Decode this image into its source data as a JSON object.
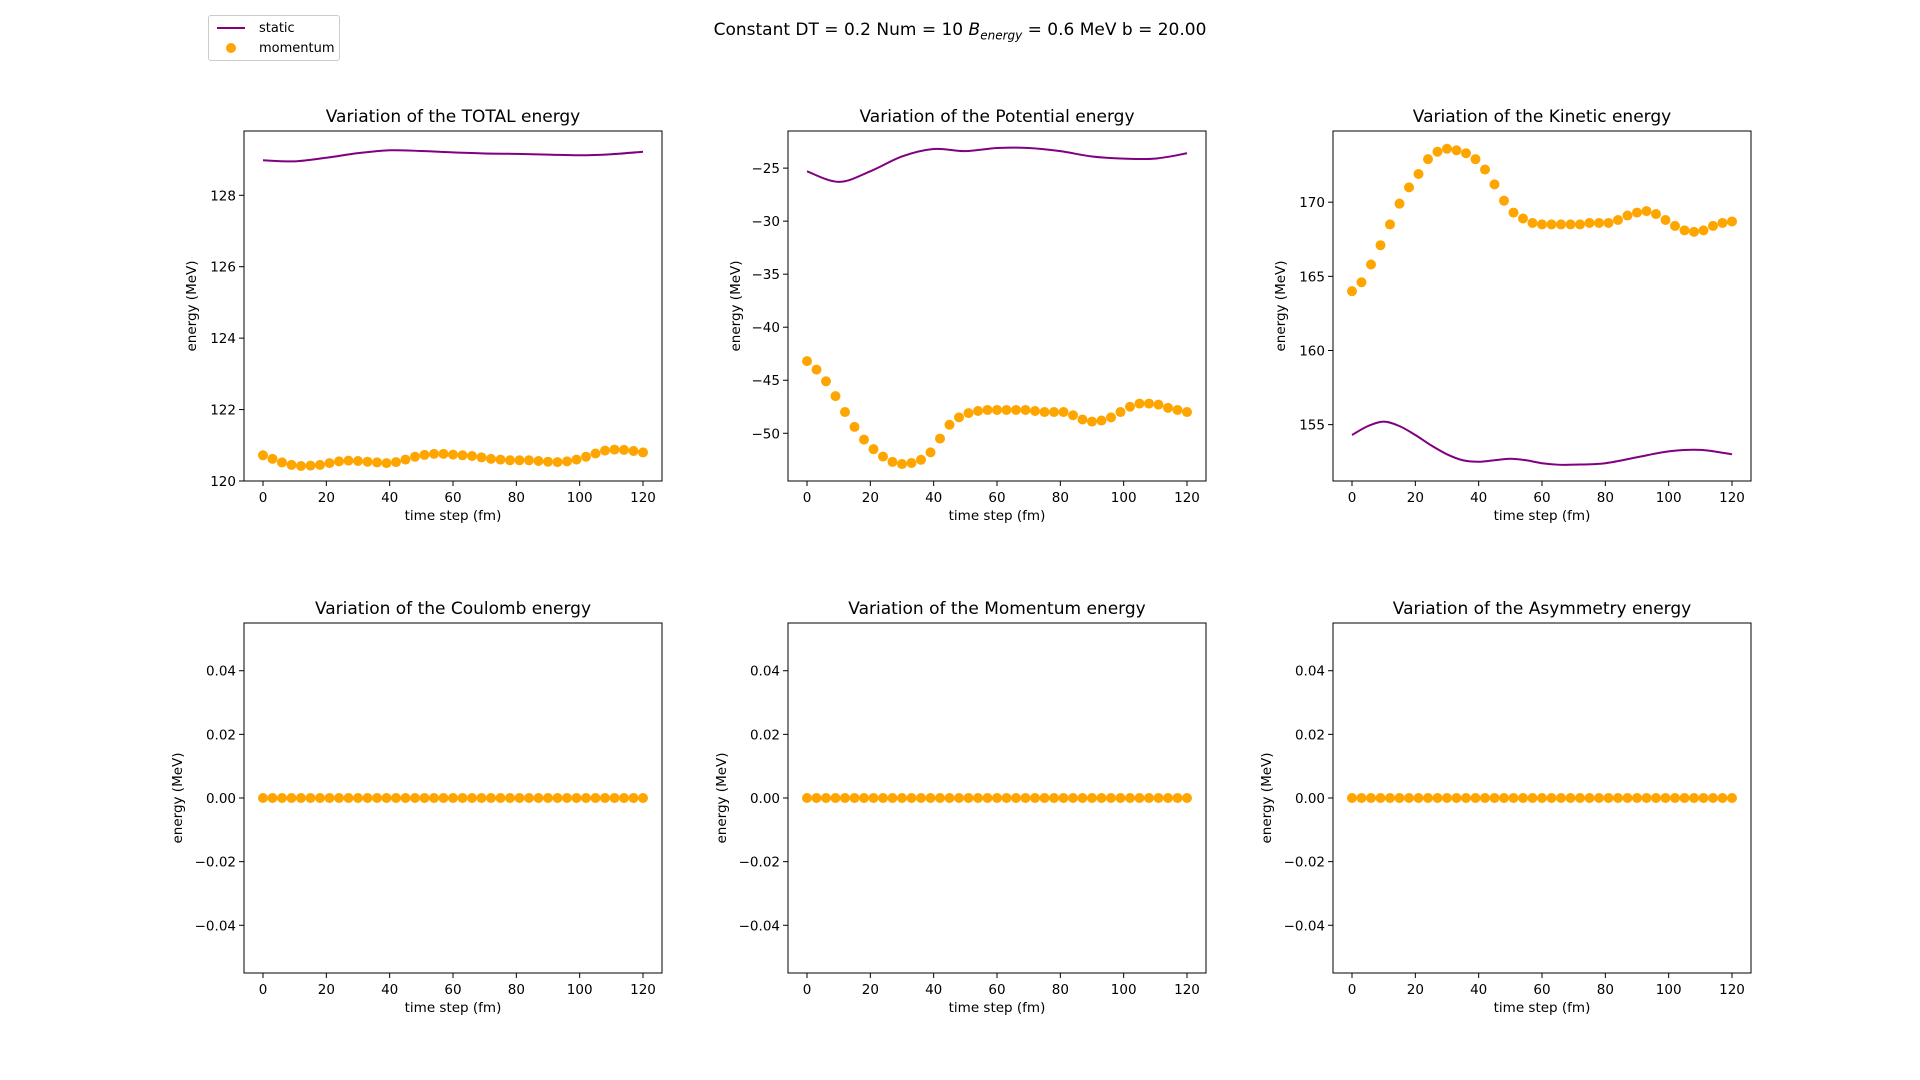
{
  "figure": {
    "suptitle_prefix": "Constant DT = 0.2 Num = 10 ",
    "suptitle_b": "B",
    "suptitle_sub": "energy",
    "suptitle_suffix": " =  0.6 MeV  b = 20.00",
    "colors": {
      "static": "#800080",
      "momentum": "#ffa500"
    }
  },
  "legend": {
    "static_label": "static",
    "momentum_label": "momentum"
  },
  "chart_data": [
    {
      "type": "line",
      "title": "Variation of the TOTAL energy",
      "xlabel": "time step (fm)",
      "ylabel": "energy (MeV)",
      "xlim": [
        -6,
        126
      ],
      "ylim": [
        120,
        129.8
      ],
      "xticks": [
        0,
        20,
        40,
        60,
        80,
        100,
        120
      ],
      "yticks": [
        120,
        122,
        124,
        126,
        128
      ],
      "ytick_labels": [
        "120",
        "122",
        "124",
        "126",
        "128"
      ],
      "series": [
        {
          "name": "static",
          "kind": "line",
          "x": [
            0,
            10,
            20,
            30,
            40,
            50,
            60,
            70,
            80,
            90,
            100,
            110,
            120
          ],
          "y": [
            128.98,
            128.95,
            129.05,
            129.18,
            129.26,
            129.24,
            129.2,
            129.17,
            129.16,
            129.14,
            129.12,
            129.15,
            129.22
          ]
        },
        {
          "name": "momentum",
          "kind": "scatter",
          "x": [
            0,
            3,
            6,
            9,
            12,
            15,
            18,
            21,
            24,
            27,
            30,
            33,
            36,
            39,
            42,
            45,
            48,
            51,
            54,
            57,
            60,
            63,
            66,
            69,
            72,
            75,
            78,
            81,
            84,
            87,
            90,
            93,
            96,
            99,
            102,
            105,
            108,
            111,
            114,
            117,
            120
          ],
          "y": [
            120.72,
            120.62,
            120.52,
            120.45,
            120.42,
            120.43,
            120.45,
            120.5,
            120.55,
            120.57,
            120.56,
            120.54,
            120.52,
            120.5,
            120.53,
            120.6,
            120.68,
            120.73,
            120.76,
            120.76,
            120.74,
            120.72,
            120.7,
            120.66,
            120.62,
            120.6,
            120.58,
            120.58,
            120.58,
            120.56,
            120.54,
            120.53,
            120.55,
            120.6,
            120.68,
            120.77,
            120.85,
            120.88,
            120.87,
            120.84,
            120.8
          ]
        }
      ]
    },
    {
      "type": "line",
      "title": "Variation of the Potential energy",
      "xlabel": "time step (fm)",
      "ylabel": "energy (MeV)",
      "xlim": [
        -6,
        126
      ],
      "ylim": [
        -54.5,
        -21.5
      ],
      "xticks": [
        0,
        20,
        40,
        60,
        80,
        100,
        120
      ],
      "yticks": [
        -50,
        -45,
        -40,
        -35,
        -30,
        -25
      ],
      "ytick_labels": [
        "−50",
        "−45",
        "−40",
        "−35",
        "−30",
        "−25"
      ],
      "series": [
        {
          "name": "static",
          "kind": "line",
          "x": [
            0,
            10,
            20,
            30,
            40,
            50,
            60,
            70,
            80,
            90,
            100,
            110,
            120
          ],
          "y": [
            -25.3,
            -26.3,
            -25.3,
            -23.9,
            -23.2,
            -23.4,
            -23.1,
            -23.1,
            -23.4,
            -23.9,
            -24.1,
            -24.1,
            -23.6
          ]
        },
        {
          "name": "momentum",
          "kind": "scatter",
          "x": [
            0,
            3,
            6,
            9,
            12,
            15,
            18,
            21,
            24,
            27,
            30,
            33,
            36,
            39,
            42,
            45,
            48,
            51,
            54,
            57,
            60,
            63,
            66,
            69,
            72,
            75,
            78,
            81,
            84,
            87,
            90,
            93,
            96,
            99,
            102,
            105,
            108,
            111,
            114,
            117,
            120
          ],
          "y": [
            -43.2,
            -44.0,
            -45.1,
            -46.5,
            -48.0,
            -49.4,
            -50.6,
            -51.5,
            -52.2,
            -52.7,
            -52.9,
            -52.8,
            -52.5,
            -51.8,
            -50.5,
            -49.2,
            -48.5,
            -48.1,
            -47.9,
            -47.8,
            -47.8,
            -47.8,
            -47.8,
            -47.8,
            -47.9,
            -48.0,
            -48.0,
            -48.0,
            -48.3,
            -48.7,
            -48.9,
            -48.8,
            -48.5,
            -48.0,
            -47.5,
            -47.2,
            -47.2,
            -47.3,
            -47.6,
            -47.8,
            -48.0
          ]
        }
      ]
    },
    {
      "type": "line",
      "title": "Variation of the Kinetic energy",
      "xlabel": "time step (fm)",
      "ylabel": "energy (MeV)",
      "xlim": [
        -6,
        126
      ],
      "ylim": [
        151.2,
        174.8
      ],
      "xticks": [
        0,
        20,
        40,
        60,
        80,
        100,
        120
      ],
      "yticks": [
        155,
        160,
        165,
        170
      ],
      "ytick_labels": [
        "155",
        "160",
        "165",
        "170"
      ],
      "series": [
        {
          "name": "static",
          "kind": "line",
          "x": [
            0,
            5,
            10,
            15,
            20,
            25,
            30,
            35,
            40,
            45,
            50,
            55,
            60,
            65,
            70,
            80,
            90,
            100,
            110,
            120
          ],
          "y": [
            154.3,
            154.9,
            155.2,
            154.9,
            154.3,
            153.6,
            153.0,
            152.6,
            152.5,
            152.6,
            152.7,
            152.6,
            152.4,
            152.3,
            152.3,
            152.4,
            152.8,
            153.2,
            153.3,
            153.0
          ]
        },
        {
          "name": "momentum",
          "kind": "scatter",
          "x": [
            0,
            3,
            6,
            9,
            12,
            15,
            18,
            21,
            24,
            27,
            30,
            33,
            36,
            39,
            42,
            45,
            48,
            51,
            54,
            57,
            60,
            63,
            66,
            69,
            72,
            75,
            78,
            81,
            84,
            87,
            90,
            93,
            96,
            99,
            102,
            105,
            108,
            111,
            114,
            117,
            120
          ],
          "y": [
            164.0,
            164.6,
            165.8,
            167.1,
            168.5,
            169.9,
            171.0,
            171.9,
            172.9,
            173.4,
            173.6,
            173.5,
            173.3,
            172.9,
            172.2,
            171.2,
            170.1,
            169.3,
            168.9,
            168.6,
            168.5,
            168.5,
            168.5,
            168.5,
            168.5,
            168.6,
            168.6,
            168.6,
            168.8,
            169.1,
            169.3,
            169.4,
            169.2,
            168.8,
            168.4,
            168.1,
            168.0,
            168.1,
            168.4,
            168.6,
            168.7
          ]
        }
      ]
    },
    {
      "type": "line",
      "title": "Variation of the Coulomb energy",
      "xlabel": "time step (fm)",
      "ylabel": "energy (MeV)",
      "xlim": [
        -6,
        126
      ],
      "ylim": [
        -0.055,
        0.055
      ],
      "xticks": [
        0,
        20,
        40,
        60,
        80,
        100,
        120
      ],
      "yticks": [
        -0.04,
        -0.02,
        0.0,
        0.02,
        0.04
      ],
      "ytick_labels": [
        "−0.04",
        "−0.02",
        "0.00",
        "0.02",
        "0.04"
      ],
      "series": [
        {
          "name": "static",
          "kind": "line",
          "x": [
            0,
            120
          ],
          "y": [
            0,
            0
          ]
        },
        {
          "name": "momentum",
          "kind": "scatter",
          "x": [
            0,
            3,
            6,
            9,
            12,
            15,
            18,
            21,
            24,
            27,
            30,
            33,
            36,
            39,
            42,
            45,
            48,
            51,
            54,
            57,
            60,
            63,
            66,
            69,
            72,
            75,
            78,
            81,
            84,
            87,
            90,
            93,
            96,
            99,
            102,
            105,
            108,
            111,
            114,
            117,
            120
          ],
          "y": [
            0,
            0,
            0,
            0,
            0,
            0,
            0,
            0,
            0,
            0,
            0,
            0,
            0,
            0,
            0,
            0,
            0,
            0,
            0,
            0,
            0,
            0,
            0,
            0,
            0,
            0,
            0,
            0,
            0,
            0,
            0,
            0,
            0,
            0,
            0,
            0,
            0,
            0,
            0,
            0,
            0
          ]
        }
      ]
    },
    {
      "type": "line",
      "title": "Variation of the Momentum energy",
      "xlabel": "time step (fm)",
      "ylabel": "energy (MeV)",
      "xlim": [
        -6,
        126
      ],
      "ylim": [
        -0.055,
        0.055
      ],
      "xticks": [
        0,
        20,
        40,
        60,
        80,
        100,
        120
      ],
      "yticks": [
        -0.04,
        -0.02,
        0.0,
        0.02,
        0.04
      ],
      "ytick_labels": [
        "−0.04",
        "−0.02",
        "0.00",
        "0.02",
        "0.04"
      ],
      "series": [
        {
          "name": "static",
          "kind": "line",
          "x": [
            0,
            120
          ],
          "y": [
            0,
            0
          ]
        },
        {
          "name": "momentum",
          "kind": "scatter",
          "x": [
            0,
            3,
            6,
            9,
            12,
            15,
            18,
            21,
            24,
            27,
            30,
            33,
            36,
            39,
            42,
            45,
            48,
            51,
            54,
            57,
            60,
            63,
            66,
            69,
            72,
            75,
            78,
            81,
            84,
            87,
            90,
            93,
            96,
            99,
            102,
            105,
            108,
            111,
            114,
            117,
            120
          ],
          "y": [
            0,
            0,
            0,
            0,
            0,
            0,
            0,
            0,
            0,
            0,
            0,
            0,
            0,
            0,
            0,
            0,
            0,
            0,
            0,
            0,
            0,
            0,
            0,
            0,
            0,
            0,
            0,
            0,
            0,
            0,
            0,
            0,
            0,
            0,
            0,
            0,
            0,
            0,
            0,
            0,
            0
          ]
        }
      ]
    },
    {
      "type": "line",
      "title": "Variation of the Asymmetry energy",
      "xlabel": "time step (fm)",
      "ylabel": "energy (MeV)",
      "xlim": [
        -6,
        126
      ],
      "ylim": [
        -0.055,
        0.055
      ],
      "xticks": [
        0,
        20,
        40,
        60,
        80,
        100,
        120
      ],
      "yticks": [
        -0.04,
        -0.02,
        0.0,
        0.02,
        0.04
      ],
      "ytick_labels": [
        "−0.04",
        "−0.02",
        "0.00",
        "0.02",
        "0.04"
      ],
      "series": [
        {
          "name": "static",
          "kind": "line",
          "x": [
            0,
            120
          ],
          "y": [
            0,
            0
          ]
        },
        {
          "name": "momentum",
          "kind": "scatter",
          "x": [
            0,
            3,
            6,
            9,
            12,
            15,
            18,
            21,
            24,
            27,
            30,
            33,
            36,
            39,
            42,
            45,
            48,
            51,
            54,
            57,
            60,
            63,
            66,
            69,
            72,
            75,
            78,
            81,
            84,
            87,
            90,
            93,
            96,
            99,
            102,
            105,
            108,
            111,
            114,
            117,
            120
          ],
          "y": [
            0,
            0,
            0,
            0,
            0,
            0,
            0,
            0,
            0,
            0,
            0,
            0,
            0,
            0,
            0,
            0,
            0,
            0,
            0,
            0,
            0,
            0,
            0,
            0,
            0,
            0,
            0,
            0,
            0,
            0,
            0,
            0,
            0,
            0,
            0,
            0,
            0,
            0,
            0,
            0,
            0
          ]
        }
      ]
    }
  ]
}
